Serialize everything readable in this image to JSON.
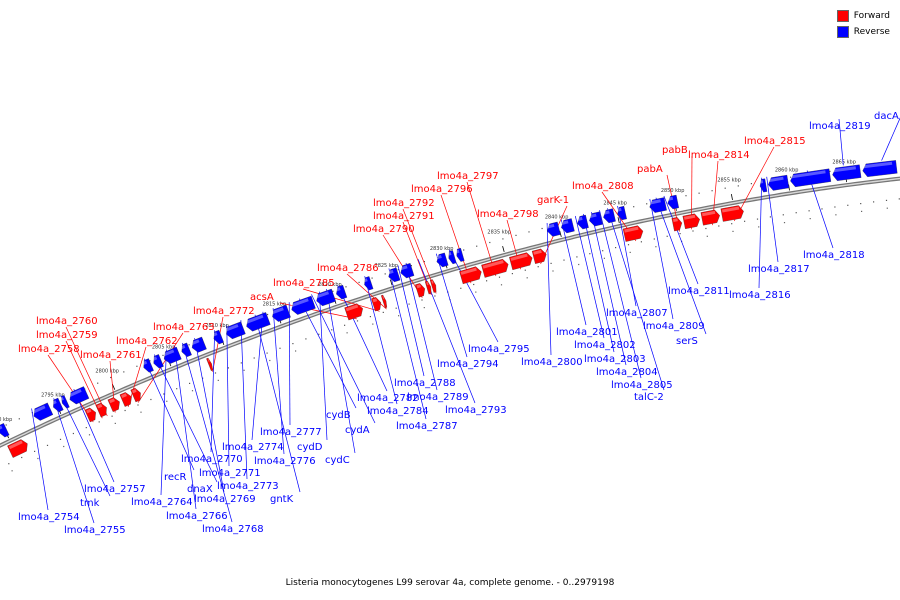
{
  "colors": {
    "forward": "#ff0000",
    "reverse": "#0000ff"
  },
  "legend": [
    {
      "label": "Forward",
      "color": "#ff0000"
    },
    {
      "label": "Reverse",
      "color": "#0000ff"
    }
  ],
  "caption": "Listeria monocytogenes L99 serovar 4a, complete genome. - 0..2979198",
  "ticks": [
    "2790 kbp",
    "2795 kbp",
    "2800 kbp",
    "2805 kbp",
    "2810 kbp",
    "2815 kbp",
    "2820 kbp",
    "2825 kbp",
    "2830 kbp",
    "2835 kbp",
    "2840 kbp",
    "2845 kbp",
    "2850 kbp",
    "2855 kbp",
    "2860 kbp",
    "2865 kbp"
  ],
  "forward_labels": [
    "lmo4a_2758",
    "lmo4a_2759",
    "lmo4a_2760",
    "lmo4a_2761",
    "lmo4a_2762",
    "lmo4a_2763",
    "lmo4a_2772",
    "acsA",
    "lmo4a_2785",
    "lmo4a_2786",
    "lmo4a_2790",
    "lmo4a_2791",
    "lmo4a_2792",
    "lmo4a_2796",
    "lmo4a_2797",
    "lmo4a_2798",
    "garK-1",
    "lmo4a_2808",
    "pabA",
    "pabB",
    "lmo4a_2814",
    "lmo4a_2815"
  ],
  "reverse_labels": [
    "lmo4a_2754",
    "lmo4a_2755",
    "tmk",
    "lmo4a_2757",
    "recR",
    "dnaX",
    "lmo4a_2764",
    "lmo4a_2766",
    "lmo4a_2768",
    "lmo4a_2769",
    "lmo4a_2770",
    "lmo4a_2771",
    "lmo4a_2773",
    "gntK",
    "lmo4a_2774",
    "lmo4a_2776",
    "lmo4a_2777",
    "cydB",
    "cydA",
    "cydD",
    "cydC",
    "lmo4a_2782",
    "lmo4a_2784",
    "lmo4a_2787",
    "lmo4a_2788",
    "lmo4a_2789",
    "lmo4a_2793",
    "lmo4a_2794",
    "lmo4a_2795",
    "lmo4a_2800",
    "lmo4a_2801",
    "lmo4a_2802",
    "lmo4a_2803",
    "lmo4a_2804",
    "lmo4a_2805",
    "talC-2",
    "lmo4a_2807",
    "lmo4a_2809",
    "serS",
    "lmo4a_2811",
    "lmo4a_2816",
    "lmo4a_2817",
    "lmo4a_2818",
    "lmo4a_2819",
    "dacA"
  ]
}
